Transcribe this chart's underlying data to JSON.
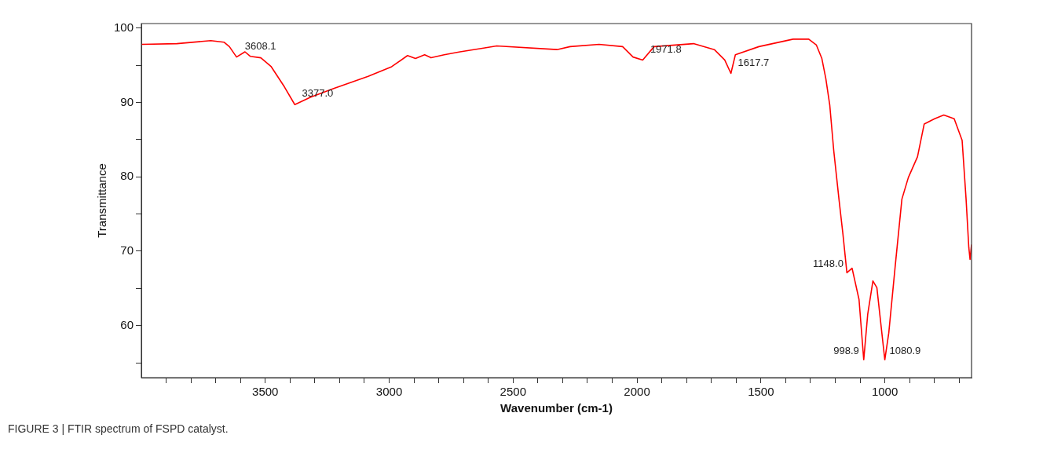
{
  "chart_data": {
    "type": "line",
    "xlabel": "Wavenumber (cm-1)",
    "ylabel": "Transmittance",
    "xlim": [
      4000,
      650
    ],
    "ylim": [
      53,
      100.6
    ],
    "xticks": [
      {
        "value": 3900,
        "label": null
      },
      {
        "value": 3800,
        "label": null
      },
      {
        "value": 3700,
        "label": null
      },
      {
        "value": 3600,
        "label": null
      },
      3500,
      {
        "value": 3400,
        "label": null
      },
      {
        "value": 3300,
        "label": null
      },
      {
        "value": 3200,
        "label": null
      },
      {
        "value": 3100,
        "label": null
      },
      3000,
      {
        "value": 2900,
        "label": null
      },
      {
        "value": 2800,
        "label": null
      },
      {
        "value": 2700,
        "label": null
      },
      {
        "value": 2600,
        "label": null
      },
      2500,
      {
        "value": 2400,
        "label": null
      },
      {
        "value": 2300,
        "label": null
      },
      {
        "value": 2200,
        "label": null
      },
      {
        "value": 2100,
        "label": null
      },
      2000,
      {
        "value": 1900,
        "label": null
      },
      {
        "value": 1800,
        "label": null
      },
      {
        "value": 1700,
        "label": null
      },
      {
        "value": 1600,
        "label": null
      },
      1500,
      {
        "value": 1400,
        "label": null
      },
      {
        "value": 1300,
        "label": null
      },
      {
        "value": 1200,
        "label": null
      },
      {
        "value": 1100,
        "label": null
      },
      1000,
      {
        "value": 900,
        "label": null
      },
      {
        "value": 800,
        "label": null
      },
      {
        "value": 700,
        "label": null
      }
    ],
    "yticks": [
      {
        "value": 55,
        "label": null
      },
      60,
      {
        "value": 65,
        "label": null
      },
      70,
      {
        "value": 75,
        "label": null
      },
      80,
      {
        "value": 85,
        "label": null
      },
      90,
      {
        "value": 95,
        "label": null
      },
      100
    ],
    "grid": false,
    "legend": false,
    "marker": "none",
    "line_style": "solid",
    "series": [
      {
        "color": "#ff0000",
        "x": [
          4000,
          3857,
          3720,
          3667,
          3645,
          3616,
          3582,
          3561,
          3518,
          3476,
          3423,
          3381,
          3317,
          3222,
          3085,
          2990,
          2926,
          2894,
          2857,
          2831,
          2778,
          2714,
          2619,
          2566,
          2323,
          2270,
          2153,
          2058,
          2016,
          1977,
          1931,
          1772,
          1688,
          1646,
          1621,
          1603,
          1508,
          1370,
          1307,
          1276,
          1254,
          1238,
          1222,
          1206,
          1185,
          1169,
          1153,
          1132,
          1122,
          1104,
          1085,
          1069,
          1048,
          1032,
          1000,
          984,
          958,
          931,
          905,
          868,
          841,
          799,
          762,
          720,
          688,
          672,
          661,
          656,
          650
        ],
        "values": [
          97.8,
          97.9,
          98.3,
          98.1,
          97.5,
          96.1,
          96.8,
          96.2,
          96.0,
          94.8,
          92.1,
          89.7,
          90.7,
          91.9,
          93.5,
          94.8,
          96.3,
          95.9,
          96.4,
          96.0,
          96.4,
          96.8,
          97.3,
          97.6,
          97.1,
          97.5,
          97.8,
          97.5,
          96.1,
          95.7,
          97.5,
          97.9,
          97.1,
          95.7,
          93.9,
          96.4,
          97.5,
          98.5,
          98.5,
          97.7,
          95.9,
          93.2,
          89.6,
          83.5,
          77.0,
          72.3,
          67.1,
          67.7,
          66.2,
          63.5,
          55.4,
          61.5,
          66.0,
          65.1,
          55.4,
          59.0,
          68.0,
          77.0,
          79.9,
          82.7,
          87.1,
          87.8,
          88.3,
          87.8,
          84.9,
          77.0,
          70.5,
          68.9,
          70.9
        ]
      }
    ],
    "annotations": [
      {
        "text": "3608.1",
        "x": 3608,
        "y": 96.1
      },
      {
        "text": "3377.0",
        "x": 3377,
        "y": 89.7
      },
      {
        "text": "1971.8",
        "x": 1972,
        "y": 95.7
      },
      {
        "text": "1617.7",
        "x": 1618,
        "y": 93.9
      },
      {
        "text": "1148.0",
        "x": 1148,
        "y": 67.1
      },
      {
        "text": "998.9",
        "x": 1085,
        "y": 55.4
      },
      {
        "text": "1080.9",
        "x": 1000,
        "y": 55.4
      },
      "FIGURE 3 | FTIR spectrum of FSPD catalyst."
    ]
  }
}
